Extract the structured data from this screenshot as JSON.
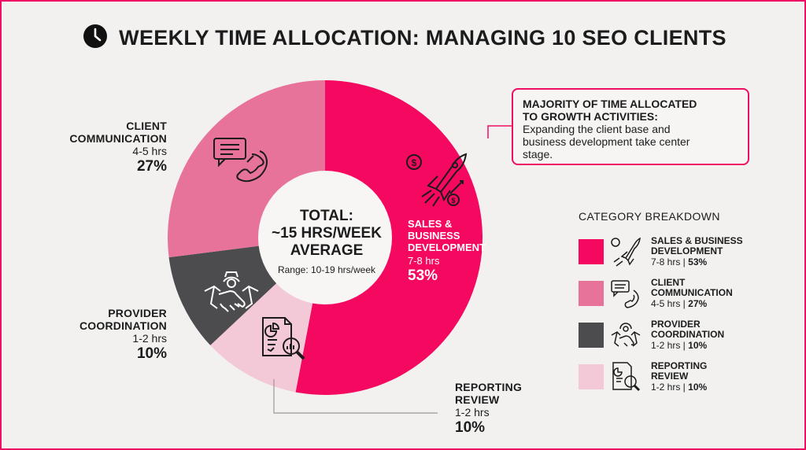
{
  "title": "WEEKLY TIME ALLOCATION: MANAGING 10 SEO CLIENTS",
  "center": {
    "line1": "TOTAL:",
    "line2": "~15 HRS/WEEK",
    "line3": "AVERAGE",
    "range": "Range: 10-19 hrs/week"
  },
  "callout": {
    "heading_line1": "MAJORITY OF TIME ALLOCATED",
    "heading_line2": "TO GROWTH ACTIVITIES:",
    "body_line1": "Expanding the client base and",
    "body_line2": "business development take center",
    "body_line3": "stage."
  },
  "labels": {
    "sales": {
      "line1": "SALES &",
      "line2": "BUSINESS",
      "line3": "DEVELOPMENT",
      "hrs": "7-8 hrs",
      "pct": "53%"
    },
    "client": {
      "line1": "CLIENT",
      "line2": "COMMUNICATION",
      "hrs": "4-5 hrs",
      "pct": "27%"
    },
    "provider": {
      "line1": "PROVIDER",
      "line2": "COORDINATION",
      "hrs": "1-2 hrs",
      "pct": "10%"
    },
    "reporting": {
      "line1": "REPORTING",
      "line2": "REVIEW",
      "hrs": "1-2 hrs",
      "pct": "10%"
    }
  },
  "legend": {
    "heading": "CATEGORY BREAKDOWN",
    "items": [
      {
        "name1": "SALES & BUSINESS",
        "name2": "DEVELOPMENT",
        "hrs": "7-8 hrs |",
        "pct": "53%",
        "color": "#f5085f",
        "icon": "rocket-icon"
      },
      {
        "name1": "CLIENT",
        "name2": "COMMUNICATION",
        "hrs": "4-5 hrs |",
        "pct": "27%",
        "color": "#e8739a",
        "icon": "chat-phone-icon"
      },
      {
        "name1": "PROVIDER",
        "name2": "COORDINATION",
        "hrs": "1-2 hrs |",
        "pct": "10%",
        "color": "#4c4b4d",
        "icon": "handshake-gear-icon"
      },
      {
        "name1": "REPORTING",
        "name2": "REVIEW",
        "hrs": "1-2 hrs |",
        "pct": "10%",
        "color": "#f4c9d7",
        "icon": "report-magnifier-icon"
      }
    ]
  },
  "chart_data": {
    "type": "pie",
    "categories": [
      "Sales & Business Development",
      "Client Communication",
      "Provider Coordination",
      "Reporting Review"
    ],
    "values": [
      53,
      27,
      10,
      10
    ],
    "hours": [
      "7-8 hrs",
      "4-5 hrs",
      "1-2 hrs",
      "1-2 hrs"
    ],
    "colors": [
      "#f5085f",
      "#e8739a",
      "#4c4b4d",
      "#f4c9d7"
    ],
    "donut": true,
    "legend_position": "right"
  }
}
